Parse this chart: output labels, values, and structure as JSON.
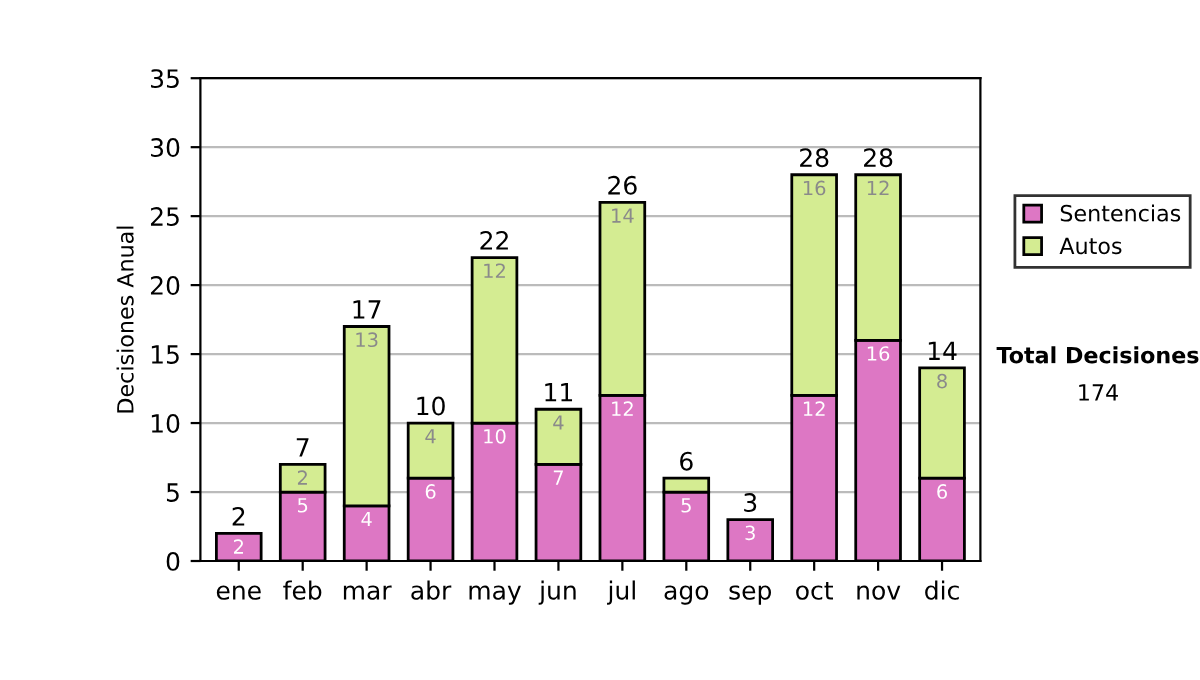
{
  "chart_data": {
    "type": "bar",
    "stacked": true,
    "ylabel": "Decisiones Anual",
    "categories": [
      "ene",
      "feb",
      "mar",
      "abr",
      "may",
      "jun",
      "jul",
      "ago",
      "sep",
      "oct",
      "nov",
      "dic"
    ],
    "series": [
      {
        "name": "Sentencias",
        "color": "#dd77c4",
        "values": [
          2,
          5,
          4,
          6,
          10,
          7,
          12,
          5,
          3,
          12,
          16,
          6
        ],
        "value_labels": [
          "2",
          "5",
          "4",
          "6",
          "10",
          "7",
          "12",
          "5",
          "3",
          "12",
          "16",
          "6"
        ]
      },
      {
        "name": "Autos",
        "color": "#d4ec92",
        "values": [
          null,
          2,
          13,
          4,
          12,
          4,
          14,
          1,
          null,
          16,
          12,
          8
        ],
        "value_labels": [
          null,
          "2",
          "13",
          "4",
          "12",
          "4",
          "14",
          null,
          null,
          "16",
          "12",
          "8"
        ]
      }
    ],
    "totals": [
      "2",
      "7",
      "17",
      "10",
      "22",
      "11",
      "26",
      "6",
      "3",
      "28",
      "28",
      "14"
    ],
    "ylim": [
      0,
      35
    ],
    "yticks": [
      0,
      5,
      10,
      15,
      20,
      25,
      30,
      35
    ],
    "grid": "y",
    "legend": "right",
    "annotations": [
      "Total Decisiones",
      "174"
    ]
  }
}
